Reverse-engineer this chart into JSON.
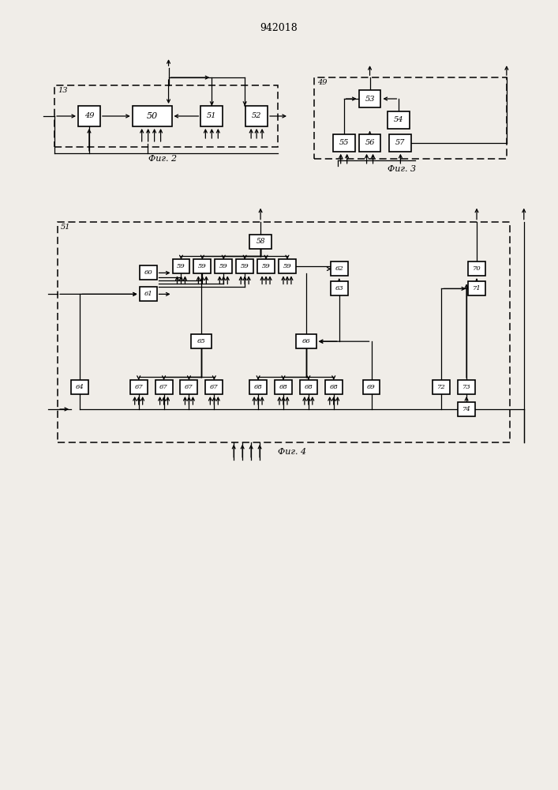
{
  "title": "942018",
  "bg_color": "#f0ede8",
  "caption2": "Фиг. 2",
  "caption3": "Фиг. 3",
  "caption4": "Фиг. 4",
  "lw": 0.9
}
